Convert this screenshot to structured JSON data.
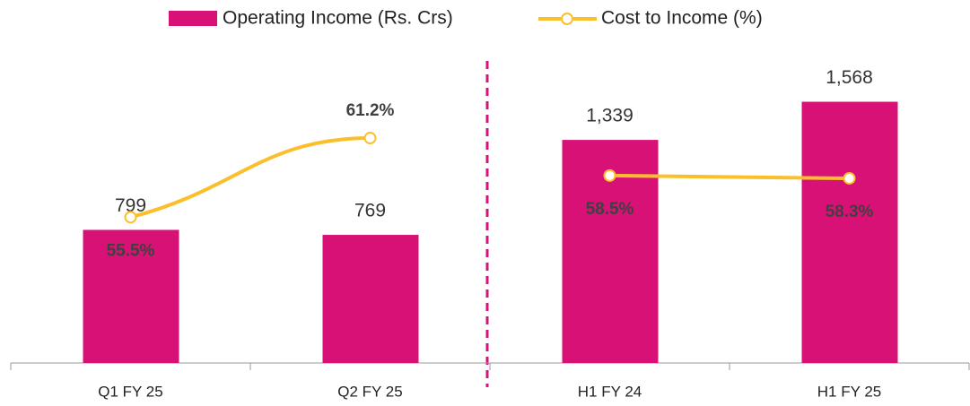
{
  "chart_data": {
    "type": "bar_line",
    "categories": [
      "Q1 FY 25",
      "Q2 FY 25",
      "H1 FY 24",
      "H1 FY 25"
    ],
    "series": [
      {
        "name": "Operating Income (Rs. Crs)",
        "type": "bar",
        "color": "#d81176",
        "values": [
          799,
          769,
          1339,
          1568
        ],
        "value_labels": [
          "799",
          "769",
          "1,339",
          "1,568"
        ]
      },
      {
        "name": "Cost to Income (%)",
        "type": "line",
        "axis": "y2",
        "color": "#fbbf2c",
        "values": [
          55.5,
          61.2,
          58.5,
          58.3
        ],
        "value_labels": [
          "55.5%",
          "61.2%",
          "58.5%",
          "58.3%"
        ]
      }
    ],
    "ylim": [
      0,
      1700
    ],
    "y2lim": [
      45,
      65.4
    ]
  }
}
